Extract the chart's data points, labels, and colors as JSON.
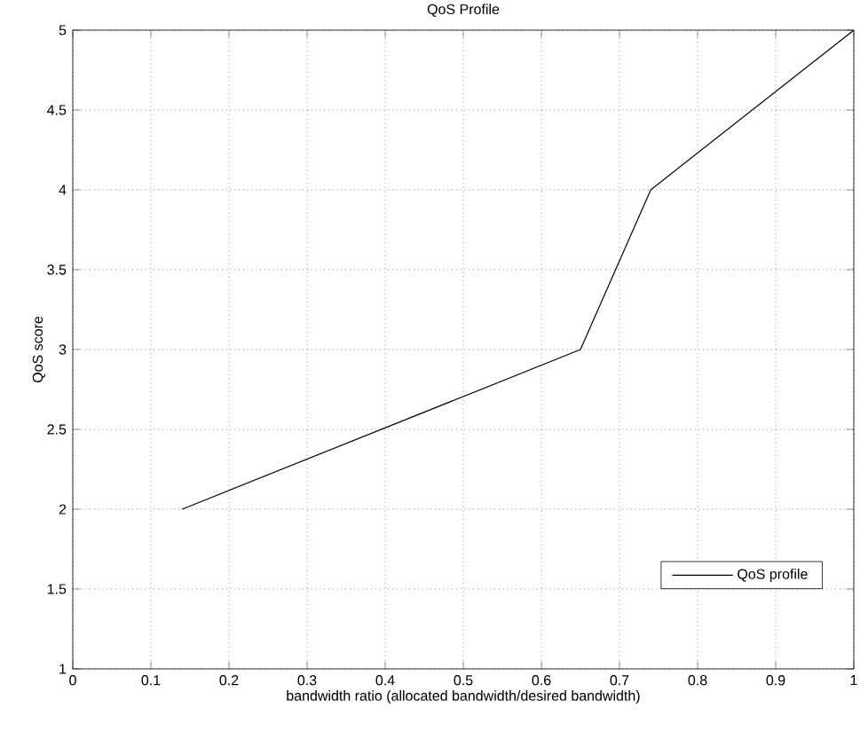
{
  "chart_data": {
    "type": "line",
    "title": "QoS Profile",
    "xlabel": "bandwidth ratio (allocated bandwidth/desired bandwidth)",
    "ylabel": "QoS score",
    "x": [
      0.14,
      0.65,
      0.74,
      1
    ],
    "series": [
      {
        "name": "QoS profile",
        "color": "#000000",
        "values": [
          2,
          3,
          4,
          5
        ]
      }
    ],
    "xlim": [
      0,
      1
    ],
    "ylim": [
      1,
      5
    ],
    "xticks": [
      0,
      0.1,
      0.2,
      0.3,
      0.4,
      0.5,
      0.6,
      0.7,
      0.8,
      0.9,
      1
    ],
    "yticks": [
      1,
      1.5,
      2,
      2.5,
      3,
      3.5,
      4,
      4.5,
      5
    ],
    "grid": true,
    "legend": "bottom right",
    "marker": "none",
    "line_style": "solid"
  }
}
